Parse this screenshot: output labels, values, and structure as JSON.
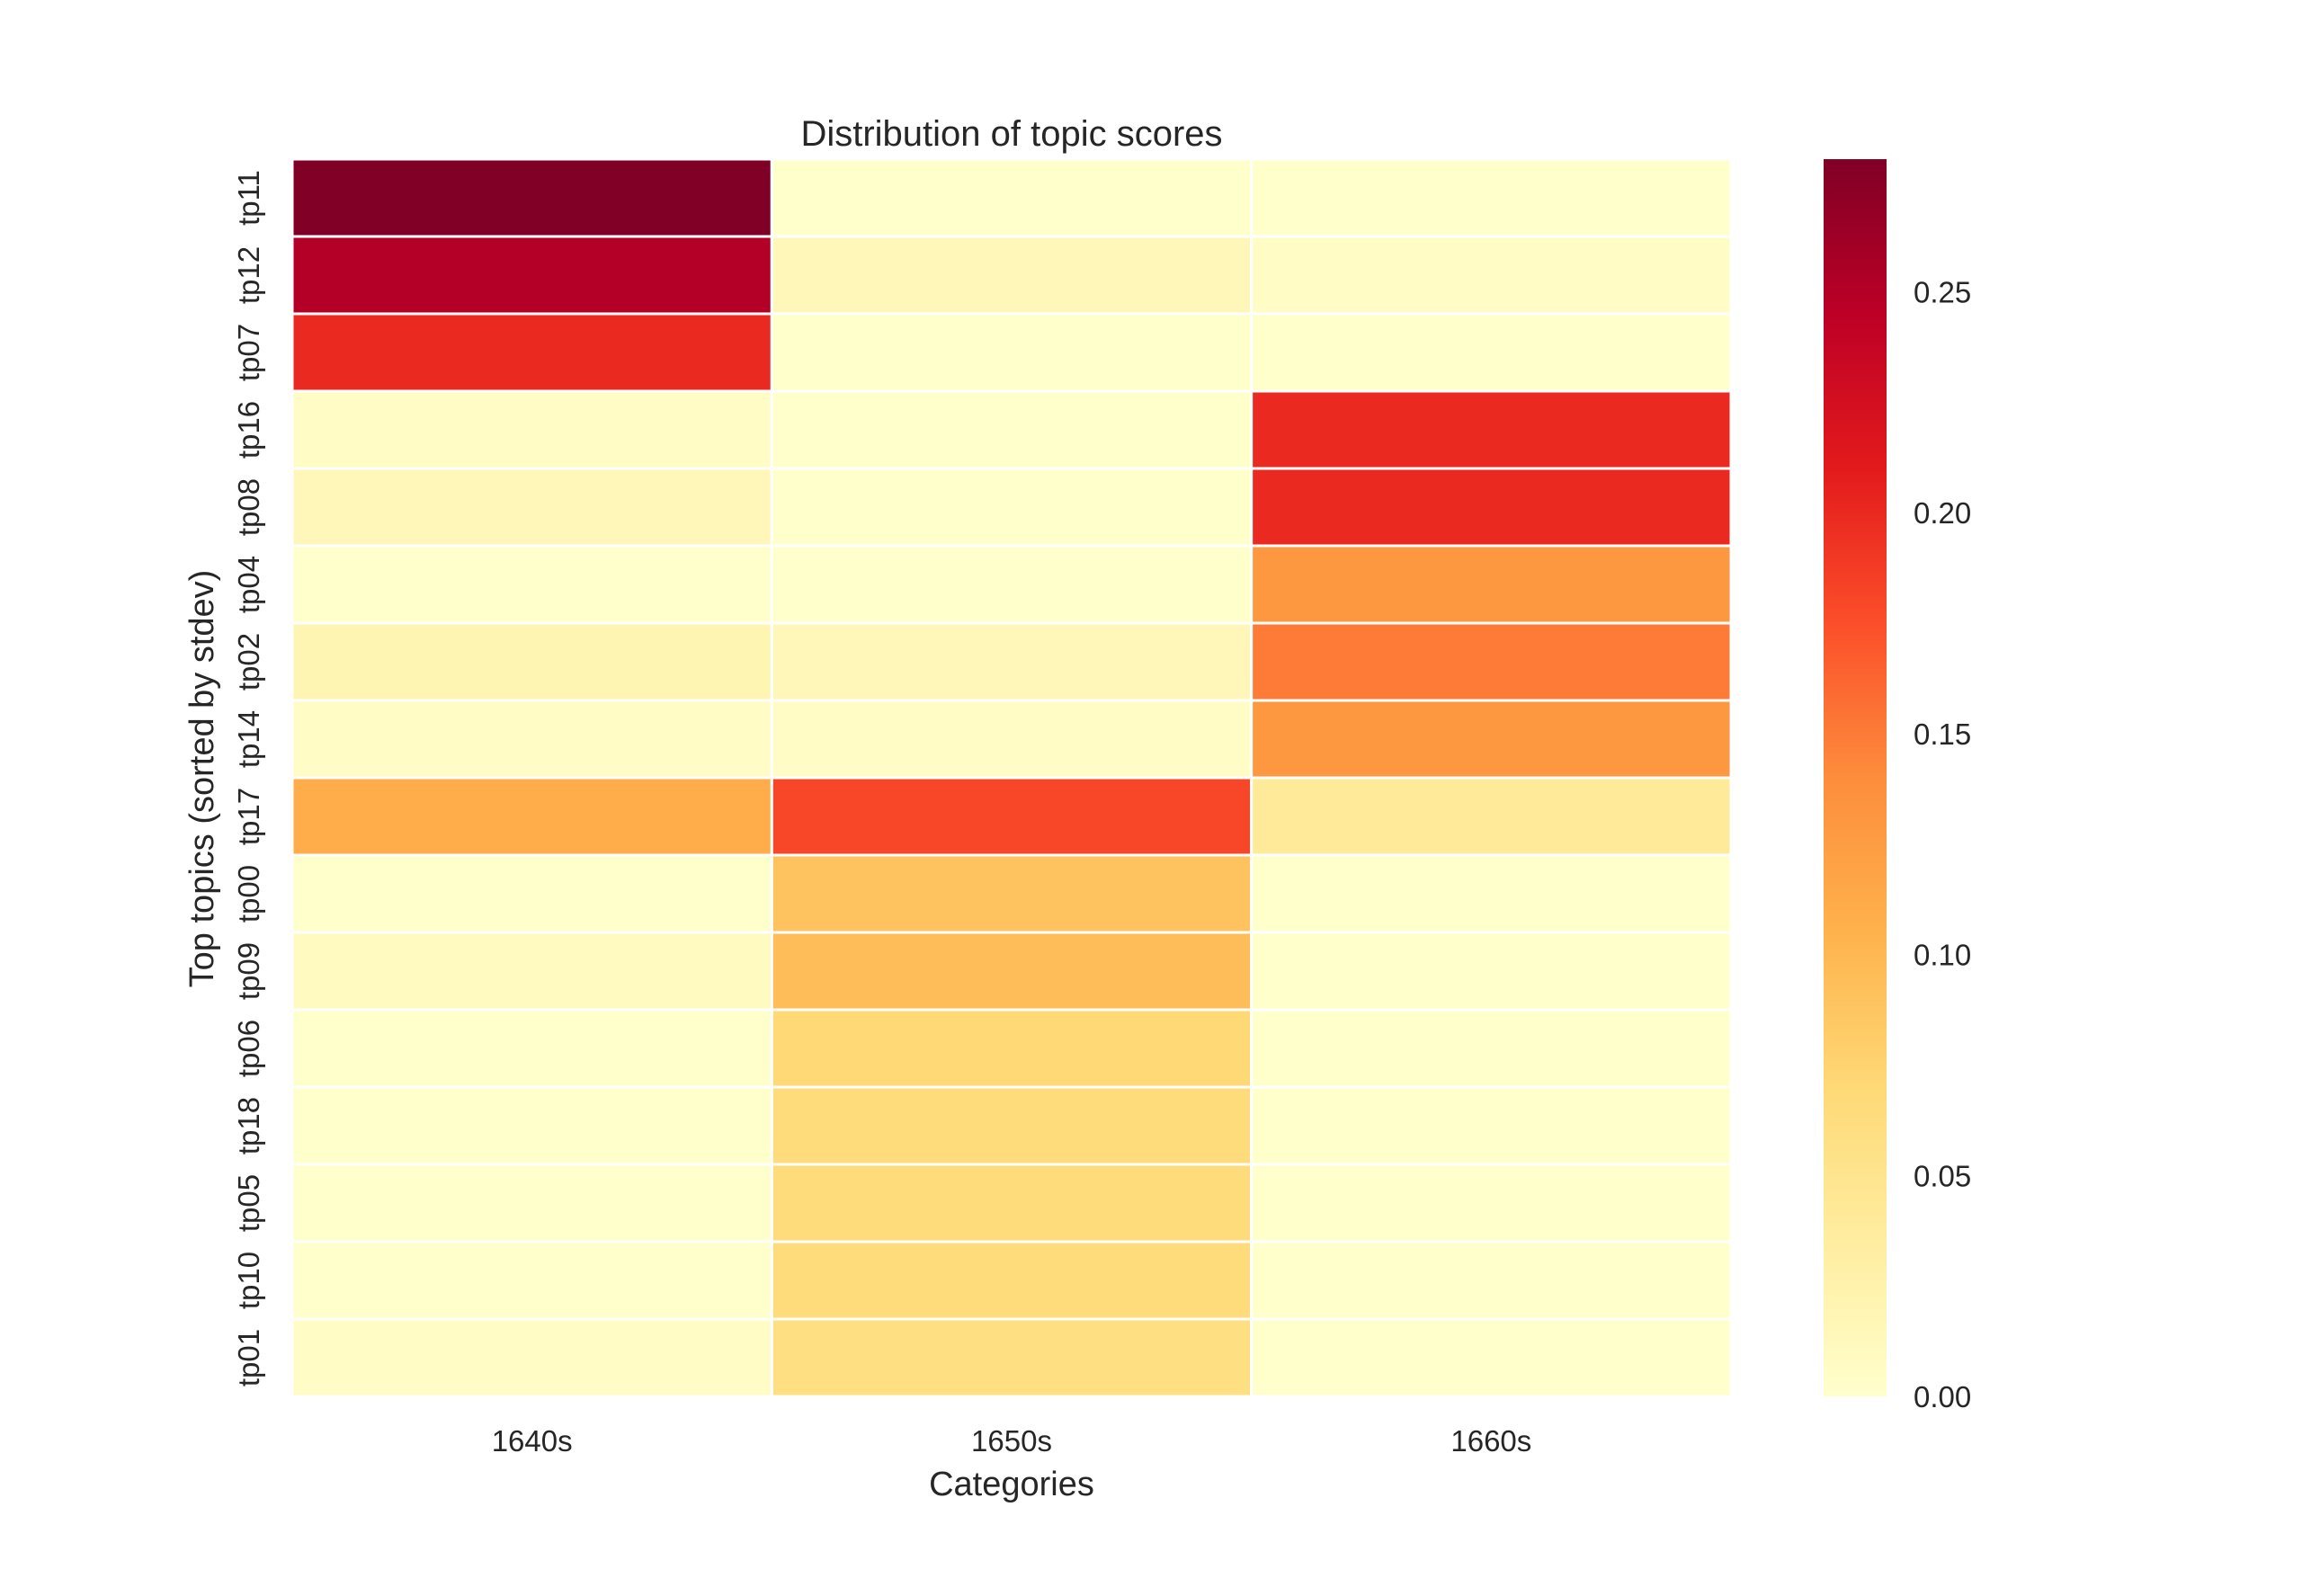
{
  "chart_data": {
    "type": "heatmap",
    "title": "Distribution of topic scores",
    "xlabel": "Categories",
    "ylabel": "Top topics (sorted by stdev)",
    "x_categories": [
      "1640s",
      "1650s",
      "1660s"
    ],
    "y_categories": [
      "tp11",
      "tp12",
      "tp07",
      "tp16",
      "tp08",
      "tp04",
      "tp02",
      "tp14",
      "tp17",
      "tp00",
      "tp09",
      "tp06",
      "tp18",
      "tp05",
      "tp10",
      "tp01"
    ],
    "values": [
      [
        0.28,
        0.0,
        0.0
      ],
      [
        0.25,
        0.015,
        0.005
      ],
      [
        0.2,
        0.0,
        0.0
      ],
      [
        0.005,
        0.0,
        0.2
      ],
      [
        0.015,
        0.0,
        0.2
      ],
      [
        0.0,
        0.0,
        0.13
      ],
      [
        0.02,
        0.015,
        0.15
      ],
      [
        0.005,
        0.005,
        0.13
      ],
      [
        0.11,
        0.18,
        0.04
      ],
      [
        0.0,
        0.09,
        0.0
      ],
      [
        0.01,
        0.095,
        0.0
      ],
      [
        0.0,
        0.07,
        0.0
      ],
      [
        0.0,
        0.065,
        0.0
      ],
      [
        0.0,
        0.065,
        0.0
      ],
      [
        0.0,
        0.065,
        0.0
      ],
      [
        0.005,
        0.06,
        0.0
      ]
    ],
    "vmin": 0.0,
    "vmax": 0.28,
    "colormap": "YlOrRd",
    "colorbar_ticks": [
      "0.00",
      "0.05",
      "0.10",
      "0.15",
      "0.20",
      "0.25"
    ],
    "colorbar_tick_values": [
      0.0,
      0.05,
      0.1,
      0.15,
      0.2,
      0.25
    ],
    "cell_border_color": "#ffffff",
    "grid": false,
    "legend": "colorbar-right"
  }
}
